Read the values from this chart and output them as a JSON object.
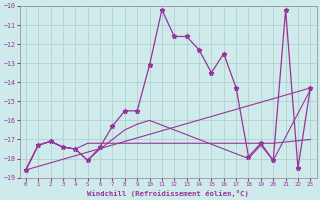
{
  "xlabel": "Windchill (Refroidissement éolien,°C)",
  "background_color": "#ceeaea",
  "grid_color": "#aacccc",
  "line_color": "#993399",
  "xlim": [
    -0.5,
    23.5
  ],
  "ylim": [
    -19,
    -10
  ],
  "xticks": [
    0,
    1,
    2,
    3,
    4,
    5,
    6,
    7,
    8,
    9,
    10,
    11,
    12,
    13,
    14,
    15,
    16,
    17,
    18,
    19,
    20,
    21,
    22,
    23
  ],
  "yticks": [
    -19,
    -18,
    -17,
    -16,
    -15,
    -14,
    -13,
    -12,
    -11,
    -10
  ],
  "main_x": [
    0,
    1,
    2,
    3,
    4,
    5,
    6,
    7,
    8,
    9,
    10,
    11,
    12,
    13,
    14,
    15,
    16,
    17,
    18,
    19,
    20,
    21,
    22,
    23
  ],
  "main_y": [
    -18.6,
    -17.3,
    -17.1,
    -17.4,
    -17.5,
    -18.1,
    -17.4,
    -16.3,
    -15.5,
    -15.5,
    -13.1,
    -10.2,
    -11.6,
    -11.6,
    -12.3,
    -13.5,
    -12.5,
    -14.3,
    -17.9,
    -17.2,
    -18.1,
    -10.2,
    -18.5,
    -14.3
  ],
  "trend_x": [
    0,
    23
  ],
  "trend_y": [
    -18.6,
    -14.3
  ],
  "flat1_x": [
    0,
    1,
    2,
    3,
    4,
    5,
    6,
    7,
    8,
    9,
    10,
    11,
    12,
    13,
    14,
    15,
    16,
    17,
    18,
    19,
    20,
    23
  ],
  "flat1_y": [
    -18.6,
    -17.3,
    -17.1,
    -17.4,
    -17.5,
    -17.2,
    -17.2,
    -17.2,
    -17.2,
    -17.2,
    -17.2,
    -17.2,
    -17.2,
    -17.2,
    -17.2,
    -17.2,
    -17.2,
    -17.2,
    -17.2,
    -17.2,
    -17.2,
    -17.0
  ],
  "env_x": [
    0,
    1,
    2,
    3,
    4,
    5,
    6,
    7,
    8,
    9,
    10,
    18,
    19,
    20,
    23
  ],
  "env_y": [
    -18.6,
    -17.3,
    -17.1,
    -17.4,
    -17.5,
    -18.1,
    -17.5,
    -17.0,
    -16.5,
    -16.2,
    -16.0,
    -18.0,
    -17.3,
    -18.1,
    -14.4
  ]
}
